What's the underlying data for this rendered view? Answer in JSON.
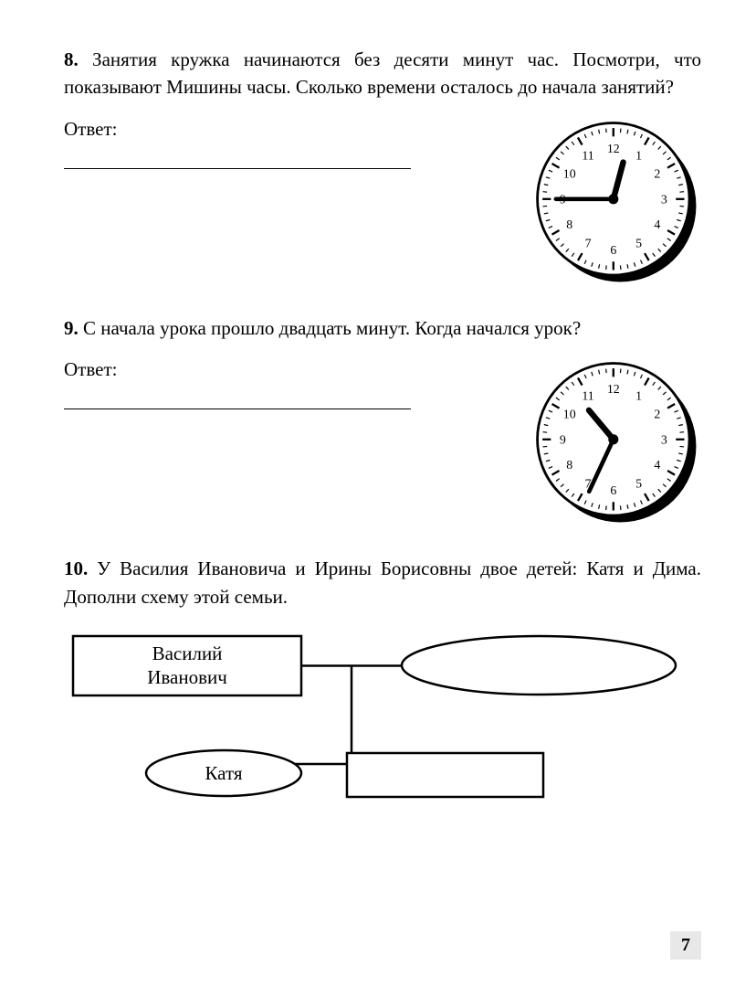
{
  "page_number": "7",
  "problems": [
    {
      "number": "8.",
      "text": "Занятия кружка начинаются без десяти минут час. Посмотри, что показывают Мишины часы. Сколько времени осталось до начала занятий?",
      "answer_label": "Ответ:",
      "clock": {
        "hour_hand_angle": 15,
        "minute_hand_angle": 270,
        "face_color": "#ffffff",
        "border_color": "#000000",
        "shadow_color": "#000000",
        "numbers": [
          "12",
          "1",
          "2",
          "3",
          "4",
          "5",
          "6",
          "7",
          "8",
          "9",
          "10",
          "11"
        ],
        "num_fontsize": 15
      }
    },
    {
      "number": "9.",
      "text": "С начала урока прошло двадцать минут. Когда начался урок?",
      "answer_label": "Ответ:",
      "clock": {
        "hour_hand_angle": 320,
        "minute_hand_angle": 205,
        "face_color": "#ffffff",
        "border_color": "#000000",
        "shadow_color": "#000000",
        "numbers": [
          "12",
          "1",
          "2",
          "3",
          "4",
          "5",
          "6",
          "7",
          "8",
          "9",
          "10",
          "11"
        ],
        "num_fontsize": 15
      }
    },
    {
      "number": "10.",
      "text": "У Василия Ивановича и Ирины Борисовны двое детей: Катя и Дима. Дополни схему этой семьи.",
      "diagram": {
        "father_line1": "Василий",
        "father_line2": "Иванович",
        "child1": "Катя",
        "box_stroke": "#000000",
        "box_fill": "#ffffff",
        "font_size": 21
      }
    }
  ]
}
